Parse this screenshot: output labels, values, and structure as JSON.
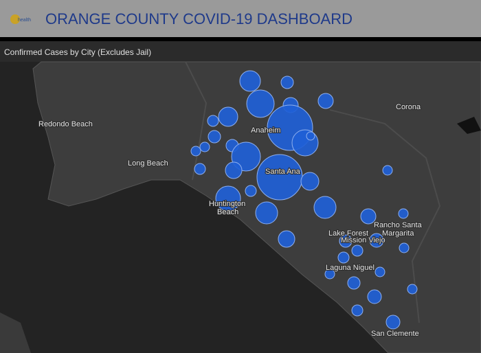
{
  "header": {
    "logo_text": "health",
    "title": "ORANGE COUNTY COVID-19 DASHBOARD"
  },
  "panel": {
    "title": "Confirmed Cases by City (Excludes Jail)"
  },
  "map": {
    "labels": [
      {
        "lines": [
          "Redondo Beach"
        ]
      },
      {
        "lines": [
          "Long Beach"
        ]
      },
      {
        "lines": [
          "Anaheim"
        ]
      },
      {
        "lines": [
          "Santa Ana"
        ]
      },
      {
        "lines": [
          "Huntington",
          "Beach"
        ]
      },
      {
        "lines": [
          "Corona"
        ]
      },
      {
        "lines": [
          "Lake Forest"
        ]
      },
      {
        "lines": [
          "Rancho Santa",
          "Margarita"
        ]
      },
      {
        "lines": [
          "Mission Viejo"
        ]
      },
      {
        "lines": [
          "Laguna Niguel"
        ]
      },
      {
        "lines": [
          "San Clemente"
        ]
      }
    ]
  }
}
